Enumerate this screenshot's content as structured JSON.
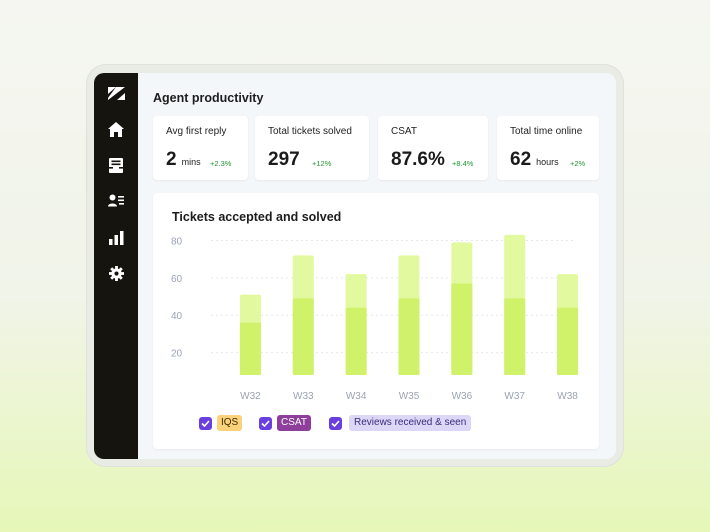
{
  "page": {
    "title": "Agent productivity"
  },
  "sidebar": {
    "items": [
      {
        "icon": "zendesk-logo-icon"
      },
      {
        "icon": "home-icon"
      },
      {
        "icon": "inbox-icon"
      },
      {
        "icon": "contacts-icon"
      },
      {
        "icon": "bar-chart-icon"
      },
      {
        "icon": "gear-icon"
      }
    ]
  },
  "metrics": [
    {
      "label": "Avg first reply",
      "value": "2",
      "unit": "mins",
      "delta": "+2.3%"
    },
    {
      "label": "Total tickets solved",
      "value": "297",
      "unit": "",
      "delta": "+12%"
    },
    {
      "label": "CSAT",
      "value": "87.6%",
      "unit": "",
      "delta": "+8.4%"
    },
    {
      "label": "Total time online",
      "value": "62",
      "unit": "hours",
      "delta": "+2%"
    }
  ],
  "colors": {
    "sidebar": "#15140f",
    "delta_positive": "#1f9a33",
    "bar_total": "#e2f9a0",
    "bar_solved": "#cff26a",
    "checkbox": "#6a3fe0",
    "iqs_chip": "#fbd27a",
    "csat_chip": "#8d3f9b",
    "reviews_chip": "#dcd6f7"
  },
  "chart_data": {
    "type": "bar",
    "title": "Tickets accepted and solved",
    "categories": [
      "W32",
      "W33",
      "W34",
      "W35",
      "W36",
      "W37",
      "W38"
    ],
    "series": [
      {
        "values": [
          51,
          72,
          62,
          72,
          79,
          83,
          62
        ]
      },
      {
        "values": [
          36,
          49,
          44,
          49,
          57,
          49,
          44
        ]
      }
    ],
    "ylim": [
      8,
      84
    ],
    "yticks": [
      20,
      40,
      60,
      80
    ],
    "grid": true
  },
  "legend": {
    "items": [
      {
        "label": "IQS",
        "checked": true
      },
      {
        "label": "CSAT",
        "checked": true
      },
      {
        "label": "Reviews received & seen",
        "checked": true
      }
    ]
  }
}
